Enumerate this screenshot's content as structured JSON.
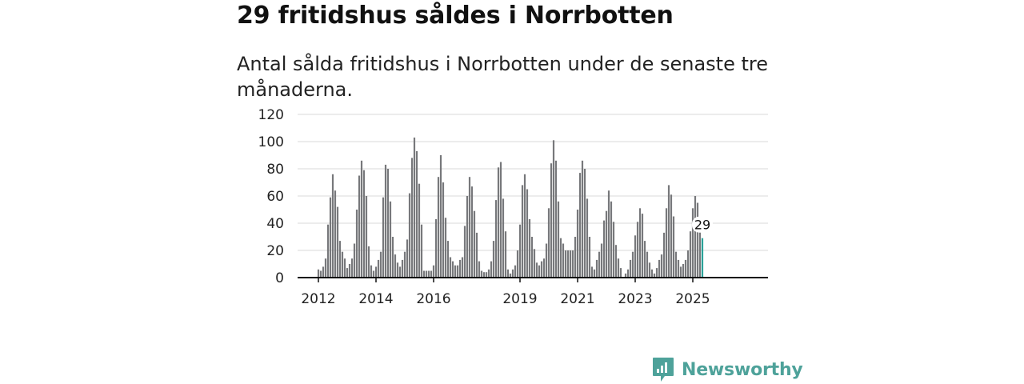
{
  "title": "29 fritidshus såldes i Norrbotten",
  "subtitle": "Antal sålda fritidshus i Norrbotten under de senaste tre månaderna.",
  "brand": {
    "name": "Newsworthy",
    "color": "#4ea29a"
  },
  "colors": {
    "bar": "#77787b",
    "highlight": "#2aa198",
    "grid": "#d9d9d9",
    "axis": "#111111"
  },
  "chart_data": {
    "type": "bar",
    "title": "",
    "xlabel": "",
    "ylabel": "",
    "ylim": [
      0,
      120
    ],
    "yticks": [
      0,
      20,
      40,
      60,
      80,
      100,
      120
    ],
    "xticks": [
      "2012",
      "2014",
      "2016",
      "2019",
      "2021",
      "2023",
      "2025"
    ],
    "grid": true,
    "start": "2012-01",
    "end": "2025-10",
    "highlight_label": "29",
    "values": [
      6,
      5,
      8,
      14,
      39,
      59,
      76,
      64,
      52,
      27,
      19,
      14,
      7,
      10,
      14,
      25,
      50,
      75,
      86,
      79,
      60,
      23,
      9,
      5,
      8,
      13,
      19,
      59,
      83,
      80,
      56,
      30,
      17,
      11,
      8,
      13,
      19,
      28,
      62,
      88,
      103,
      93,
      69,
      39,
      5,
      5,
      5,
      5,
      9,
      43,
      74,
      90,
      70,
      44,
      27,
      15,
      12,
      9,
      9,
      13,
      15,
      38,
      60,
      74,
      67,
      49,
      33,
      12,
      5,
      4,
      4,
      6,
      12,
      27,
      57,
      81,
      85,
      58,
      34,
      6,
      3,
      6,
      9,
      20,
      39,
      68,
      76,
      65,
      43,
      30,
      21,
      11,
      9,
      12,
      14,
      25,
      51,
      84,
      101,
      86,
      56,
      29,
      25,
      20,
      20,
      20,
      20,
      30,
      50,
      77,
      86,
      80,
      58,
      30,
      8,
      6,
      13,
      19,
      25,
      42,
      49,
      64,
      56,
      41,
      24,
      14,
      7,
      0,
      3,
      6,
      13,
      19,
      31,
      41,
      51,
      47,
      27,
      19,
      11,
      6,
      3,
      7,
      13,
      17,
      33,
      51,
      68,
      61,
      45,
      19,
      13,
      8,
      10,
      13,
      20,
      34,
      51,
      60,
      55,
      34,
      29
    ]
  }
}
